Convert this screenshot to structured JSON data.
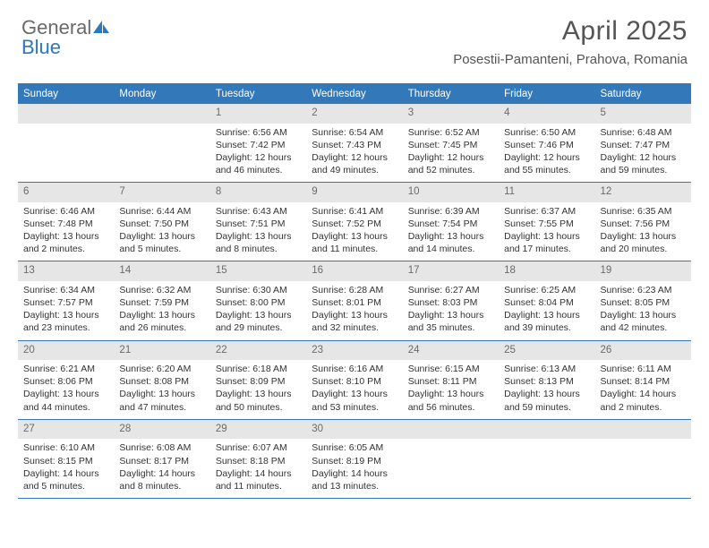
{
  "brand": {
    "part1": "General",
    "part2": "Blue"
  },
  "title": "April 2025",
  "location": "Posestii-Pamanteni, Prahova, Romania",
  "colors": {
    "header_bar": "#3378b8",
    "daynum_bg": "#e6e6e6",
    "text": "#333333",
    "title_text": "#555555",
    "brand_gray": "#6a6a6a",
    "brand_blue": "#2a78bd"
  },
  "dow": [
    "Sunday",
    "Monday",
    "Tuesday",
    "Wednesday",
    "Thursday",
    "Friday",
    "Saturday"
  ],
  "weeks": [
    [
      {
        "n": "",
        "sr": "",
        "ss": "",
        "dl": ""
      },
      {
        "n": "",
        "sr": "",
        "ss": "",
        "dl": ""
      },
      {
        "n": "1",
        "sr": "6:56 AM",
        "ss": "7:42 PM",
        "dl": "12 hours and 46 minutes."
      },
      {
        "n": "2",
        "sr": "6:54 AM",
        "ss": "7:43 PM",
        "dl": "12 hours and 49 minutes."
      },
      {
        "n": "3",
        "sr": "6:52 AM",
        "ss": "7:45 PM",
        "dl": "12 hours and 52 minutes."
      },
      {
        "n": "4",
        "sr": "6:50 AM",
        "ss": "7:46 PM",
        "dl": "12 hours and 55 minutes."
      },
      {
        "n": "5",
        "sr": "6:48 AM",
        "ss": "7:47 PM",
        "dl": "12 hours and 59 minutes."
      }
    ],
    [
      {
        "n": "6",
        "sr": "6:46 AM",
        "ss": "7:48 PM",
        "dl": "13 hours and 2 minutes."
      },
      {
        "n": "7",
        "sr": "6:44 AM",
        "ss": "7:50 PM",
        "dl": "13 hours and 5 minutes."
      },
      {
        "n": "8",
        "sr": "6:43 AM",
        "ss": "7:51 PM",
        "dl": "13 hours and 8 minutes."
      },
      {
        "n": "9",
        "sr": "6:41 AM",
        "ss": "7:52 PM",
        "dl": "13 hours and 11 minutes."
      },
      {
        "n": "10",
        "sr": "6:39 AM",
        "ss": "7:54 PM",
        "dl": "13 hours and 14 minutes."
      },
      {
        "n": "11",
        "sr": "6:37 AM",
        "ss": "7:55 PM",
        "dl": "13 hours and 17 minutes."
      },
      {
        "n": "12",
        "sr": "6:35 AM",
        "ss": "7:56 PM",
        "dl": "13 hours and 20 minutes."
      }
    ],
    [
      {
        "n": "13",
        "sr": "6:34 AM",
        "ss": "7:57 PM",
        "dl": "13 hours and 23 minutes."
      },
      {
        "n": "14",
        "sr": "6:32 AM",
        "ss": "7:59 PM",
        "dl": "13 hours and 26 minutes."
      },
      {
        "n": "15",
        "sr": "6:30 AM",
        "ss": "8:00 PM",
        "dl": "13 hours and 29 minutes."
      },
      {
        "n": "16",
        "sr": "6:28 AM",
        "ss": "8:01 PM",
        "dl": "13 hours and 32 minutes."
      },
      {
        "n": "17",
        "sr": "6:27 AM",
        "ss": "8:03 PM",
        "dl": "13 hours and 35 minutes."
      },
      {
        "n": "18",
        "sr": "6:25 AM",
        "ss": "8:04 PM",
        "dl": "13 hours and 39 minutes."
      },
      {
        "n": "19",
        "sr": "6:23 AM",
        "ss": "8:05 PM",
        "dl": "13 hours and 42 minutes."
      }
    ],
    [
      {
        "n": "20",
        "sr": "6:21 AM",
        "ss": "8:06 PM",
        "dl": "13 hours and 44 minutes."
      },
      {
        "n": "21",
        "sr": "6:20 AM",
        "ss": "8:08 PM",
        "dl": "13 hours and 47 minutes."
      },
      {
        "n": "22",
        "sr": "6:18 AM",
        "ss": "8:09 PM",
        "dl": "13 hours and 50 minutes."
      },
      {
        "n": "23",
        "sr": "6:16 AM",
        "ss": "8:10 PM",
        "dl": "13 hours and 53 minutes."
      },
      {
        "n": "24",
        "sr": "6:15 AM",
        "ss": "8:11 PM",
        "dl": "13 hours and 56 minutes."
      },
      {
        "n": "25",
        "sr": "6:13 AM",
        "ss": "8:13 PM",
        "dl": "13 hours and 59 minutes."
      },
      {
        "n": "26",
        "sr": "6:11 AM",
        "ss": "8:14 PM",
        "dl": "14 hours and 2 minutes."
      }
    ],
    [
      {
        "n": "27",
        "sr": "6:10 AM",
        "ss": "8:15 PM",
        "dl": "14 hours and 5 minutes."
      },
      {
        "n": "28",
        "sr": "6:08 AM",
        "ss": "8:17 PM",
        "dl": "14 hours and 8 minutes."
      },
      {
        "n": "29",
        "sr": "6:07 AM",
        "ss": "8:18 PM",
        "dl": "14 hours and 11 minutes."
      },
      {
        "n": "30",
        "sr": "6:05 AM",
        "ss": "8:19 PM",
        "dl": "14 hours and 13 minutes."
      },
      {
        "n": "",
        "sr": "",
        "ss": "",
        "dl": ""
      },
      {
        "n": "",
        "sr": "",
        "ss": "",
        "dl": ""
      },
      {
        "n": "",
        "sr": "",
        "ss": "",
        "dl": ""
      }
    ]
  ],
  "labels": {
    "sunrise": "Sunrise: ",
    "sunset": "Sunset: ",
    "daylight": "Daylight: "
  }
}
